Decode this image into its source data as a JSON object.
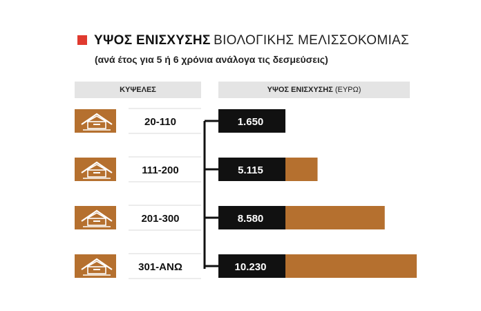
{
  "title": {
    "bold": "ΥΨΟΣ ΕΝΙΣΧΥΣΗΣ",
    "light": "ΒΙΟΛΟΓΙΚΗΣ ΜΕΛΙΣΣΟΚΟΜΙΑΣ"
  },
  "subtitle": "(ανά έτος για 5 ή 6 χρόνια ανάλογα τις δεσμεύσεις)",
  "headers": {
    "hives": "ΚΥΨΕΛΕΣ",
    "amount": "ΥΨΟΣ ΕΝΙΣΧΥΣΗΣ",
    "amount_unit": "(ΕΥΡΩ)"
  },
  "colors": {
    "accent_red": "#e03a2f",
    "bar_brown": "#b5702f",
    "label_black": "#111111",
    "header_gray": "#e4e4e4"
  },
  "icon": "beehive-icon",
  "chart_data": {
    "type": "bar",
    "orientation": "horizontal",
    "categories": [
      "20-110",
      "111-200",
      "201-300",
      "301-ΑΝΩ"
    ],
    "values": [
      1650,
      5115,
      8580,
      10230
    ],
    "value_labels": [
      "1.650",
      "5.115",
      "8.580",
      "10.230"
    ],
    "title": "ΥΨΟΣ ΕΝΙΣΧΥΣΗΣ ΒΙΟΛΟΓΙΚΗΣ ΜΕΛΙΣΣΟΚΟΜΙΑΣ",
    "xlabel": "ΥΨΟΣ ΕΝΙΣΧΥΣΗΣ (ΕΥΡΩ)",
    "ylabel": "ΚΥΨΕΛΕΣ",
    "xlim": [
      0,
      10230
    ],
    "grid": false,
    "legend": "none"
  }
}
